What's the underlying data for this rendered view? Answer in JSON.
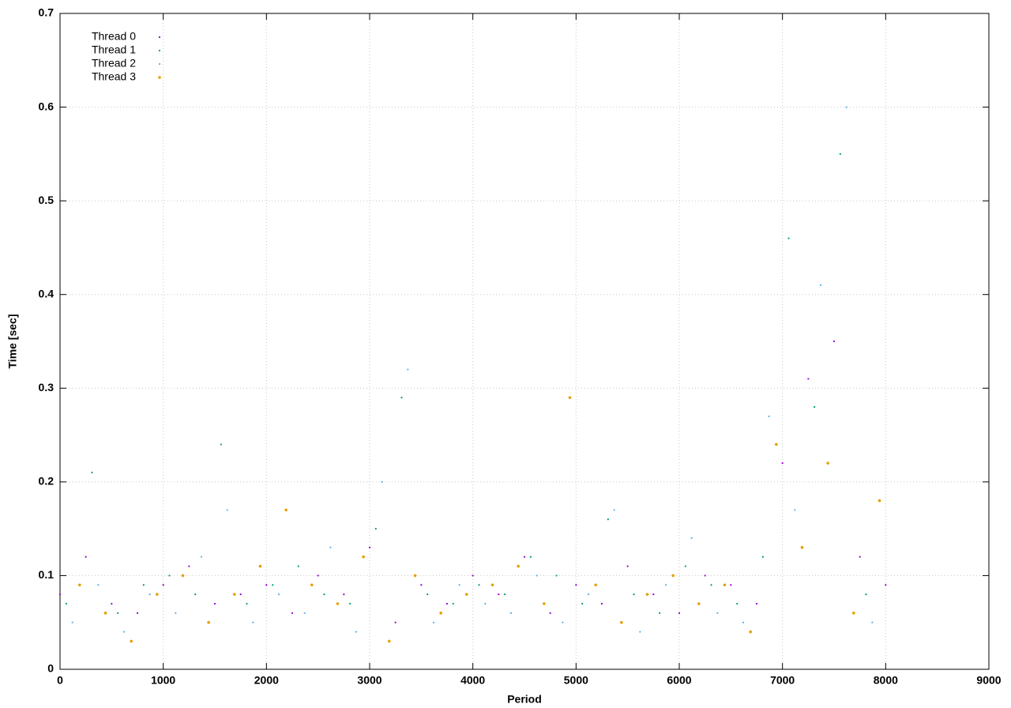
{
  "chart_data": {
    "type": "scatter",
    "x_label": "Period",
    "y_label": "Time [sec]",
    "xlim": [
      0,
      9000
    ],
    "xticks": [
      0,
      1000,
      2000,
      3000,
      4000,
      5000,
      6000,
      7000,
      8000,
      9000
    ],
    "ylim": [
      0,
      0.7
    ],
    "yticks": [
      0,
      0.1,
      0.2,
      0.3,
      0.4,
      0.5,
      0.6,
      0.7
    ],
    "grid": true,
    "legend": "top-left",
    "series": [
      {
        "name": "Thread 0",
        "color": "#9400d3",
        "x": [
          0,
          250,
          500,
          750,
          1000,
          1250,
          1500,
          1750,
          2000,
          2250,
          2500,
          2750,
          3000,
          3250,
          3500,
          3750,
          4000,
          4250,
          4500,
          4750,
          5000,
          5250,
          5500,
          5750,
          6000,
          6250,
          6500,
          6750,
          7000,
          7250,
          7500,
          7750,
          8000
        ],
        "values": [
          0.08,
          0.12,
          0.07,
          0.06,
          0.09,
          0.11,
          0.07,
          0.08,
          0.09,
          0.06,
          0.1,
          0.08,
          0.13,
          0.05,
          0.09,
          0.07,
          0.1,
          0.08,
          0.12,
          0.06,
          0.09,
          0.07,
          0.11,
          0.08,
          0.06,
          0.1,
          0.09,
          0.07,
          0.22,
          0.31,
          0.35,
          0.12,
          0.09
        ]
      },
      {
        "name": "Thread 1",
        "color": "#009e73",
        "x": [
          60,
          310,
          560,
          810,
          1060,
          1310,
          1560,
          1810,
          2060,
          2310,
          2560,
          2810,
          3060,
          3310,
          3560,
          3810,
          4060,
          4310,
          4560,
          4810,
          5060,
          5310,
          5560,
          5810,
          6060,
          6310,
          6560,
          6810,
          7060,
          7310,
          7560,
          7810
        ],
        "values": [
          0.07,
          0.21,
          0.06,
          0.09,
          0.1,
          0.08,
          0.24,
          0.07,
          0.09,
          0.11,
          0.08,
          0.07,
          0.15,
          0.29,
          0.08,
          0.07,
          0.09,
          0.08,
          0.12,
          0.1,
          0.07,
          0.16,
          0.08,
          0.06,
          0.11,
          0.09,
          0.07,
          0.12,
          0.46,
          0.28,
          0.55,
          0.08
        ]
      },
      {
        "name": "Thread 2",
        "color": "#56b4e9",
        "x": [
          120,
          370,
          620,
          870,
          1120,
          1370,
          1620,
          1870,
          2120,
          2370,
          2620,
          2870,
          3120,
          3370,
          3620,
          3870,
          4120,
          4370,
          4620,
          4870,
          5120,
          5370,
          5620,
          5870,
          6120,
          6370,
          6620,
          6870,
          7120,
          7370,
          7620,
          7870
        ],
        "values": [
          0.05,
          0.09,
          0.04,
          0.08,
          0.06,
          0.12,
          0.17,
          0.05,
          0.08,
          0.06,
          0.13,
          0.04,
          0.2,
          0.32,
          0.05,
          0.09,
          0.07,
          0.06,
          0.1,
          0.05,
          0.08,
          0.17,
          0.04,
          0.09,
          0.14,
          0.06,
          0.05,
          0.27,
          0.17,
          0.41,
          0.6,
          0.05
        ]
      },
      {
        "name": "Thread 3",
        "color": "#e69f00",
        "x": [
          190,
          440,
          690,
          940,
          1190,
          1440,
          1690,
          1940,
          2190,
          2440,
          2690,
          2940,
          3190,
          3440,
          3690,
          3940,
          4190,
          4440,
          4690,
          4940,
          5190,
          5440,
          5690,
          5940,
          6190,
          6440,
          6690,
          6940,
          7190,
          7440,
          7690,
          7940
        ],
        "values": [
          0.09,
          0.06,
          0.03,
          0.08,
          0.1,
          0.05,
          0.08,
          0.11,
          0.17,
          0.09,
          0.07,
          0.12,
          0.03,
          0.1,
          0.06,
          0.08,
          0.09,
          0.11,
          0.07,
          0.29,
          0.09,
          0.05,
          0.08,
          0.1,
          0.07,
          0.09,
          0.04,
          0.24,
          0.13,
          0.22,
          0.06,
          0.18
        ]
      }
    ]
  }
}
